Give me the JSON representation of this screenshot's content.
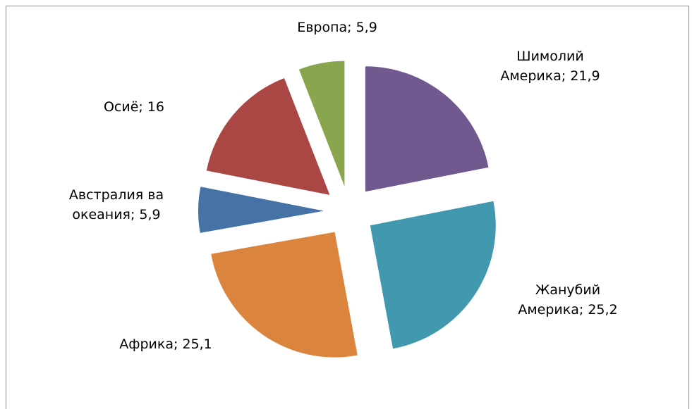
{
  "chart_data": {
    "type": "pie",
    "values": [
      21.9,
      25.2,
      25.1,
      5.9,
      16,
      5.9
    ],
    "value_labels": [
      "Шимолий\nАмерика; 21,9",
      "Жанубий\nАмерика; 25,2",
      "Африка; 25,1",
      "Австралия ва\nокеания; 5,9",
      "Осиё; 16",
      "Европа; 5,9"
    ],
    "colors": [
      "#71588f",
      "#4198af",
      "#db843d",
      "#4572a7",
      "#aa4643",
      "#89a54e"
    ],
    "exploded": true
  }
}
